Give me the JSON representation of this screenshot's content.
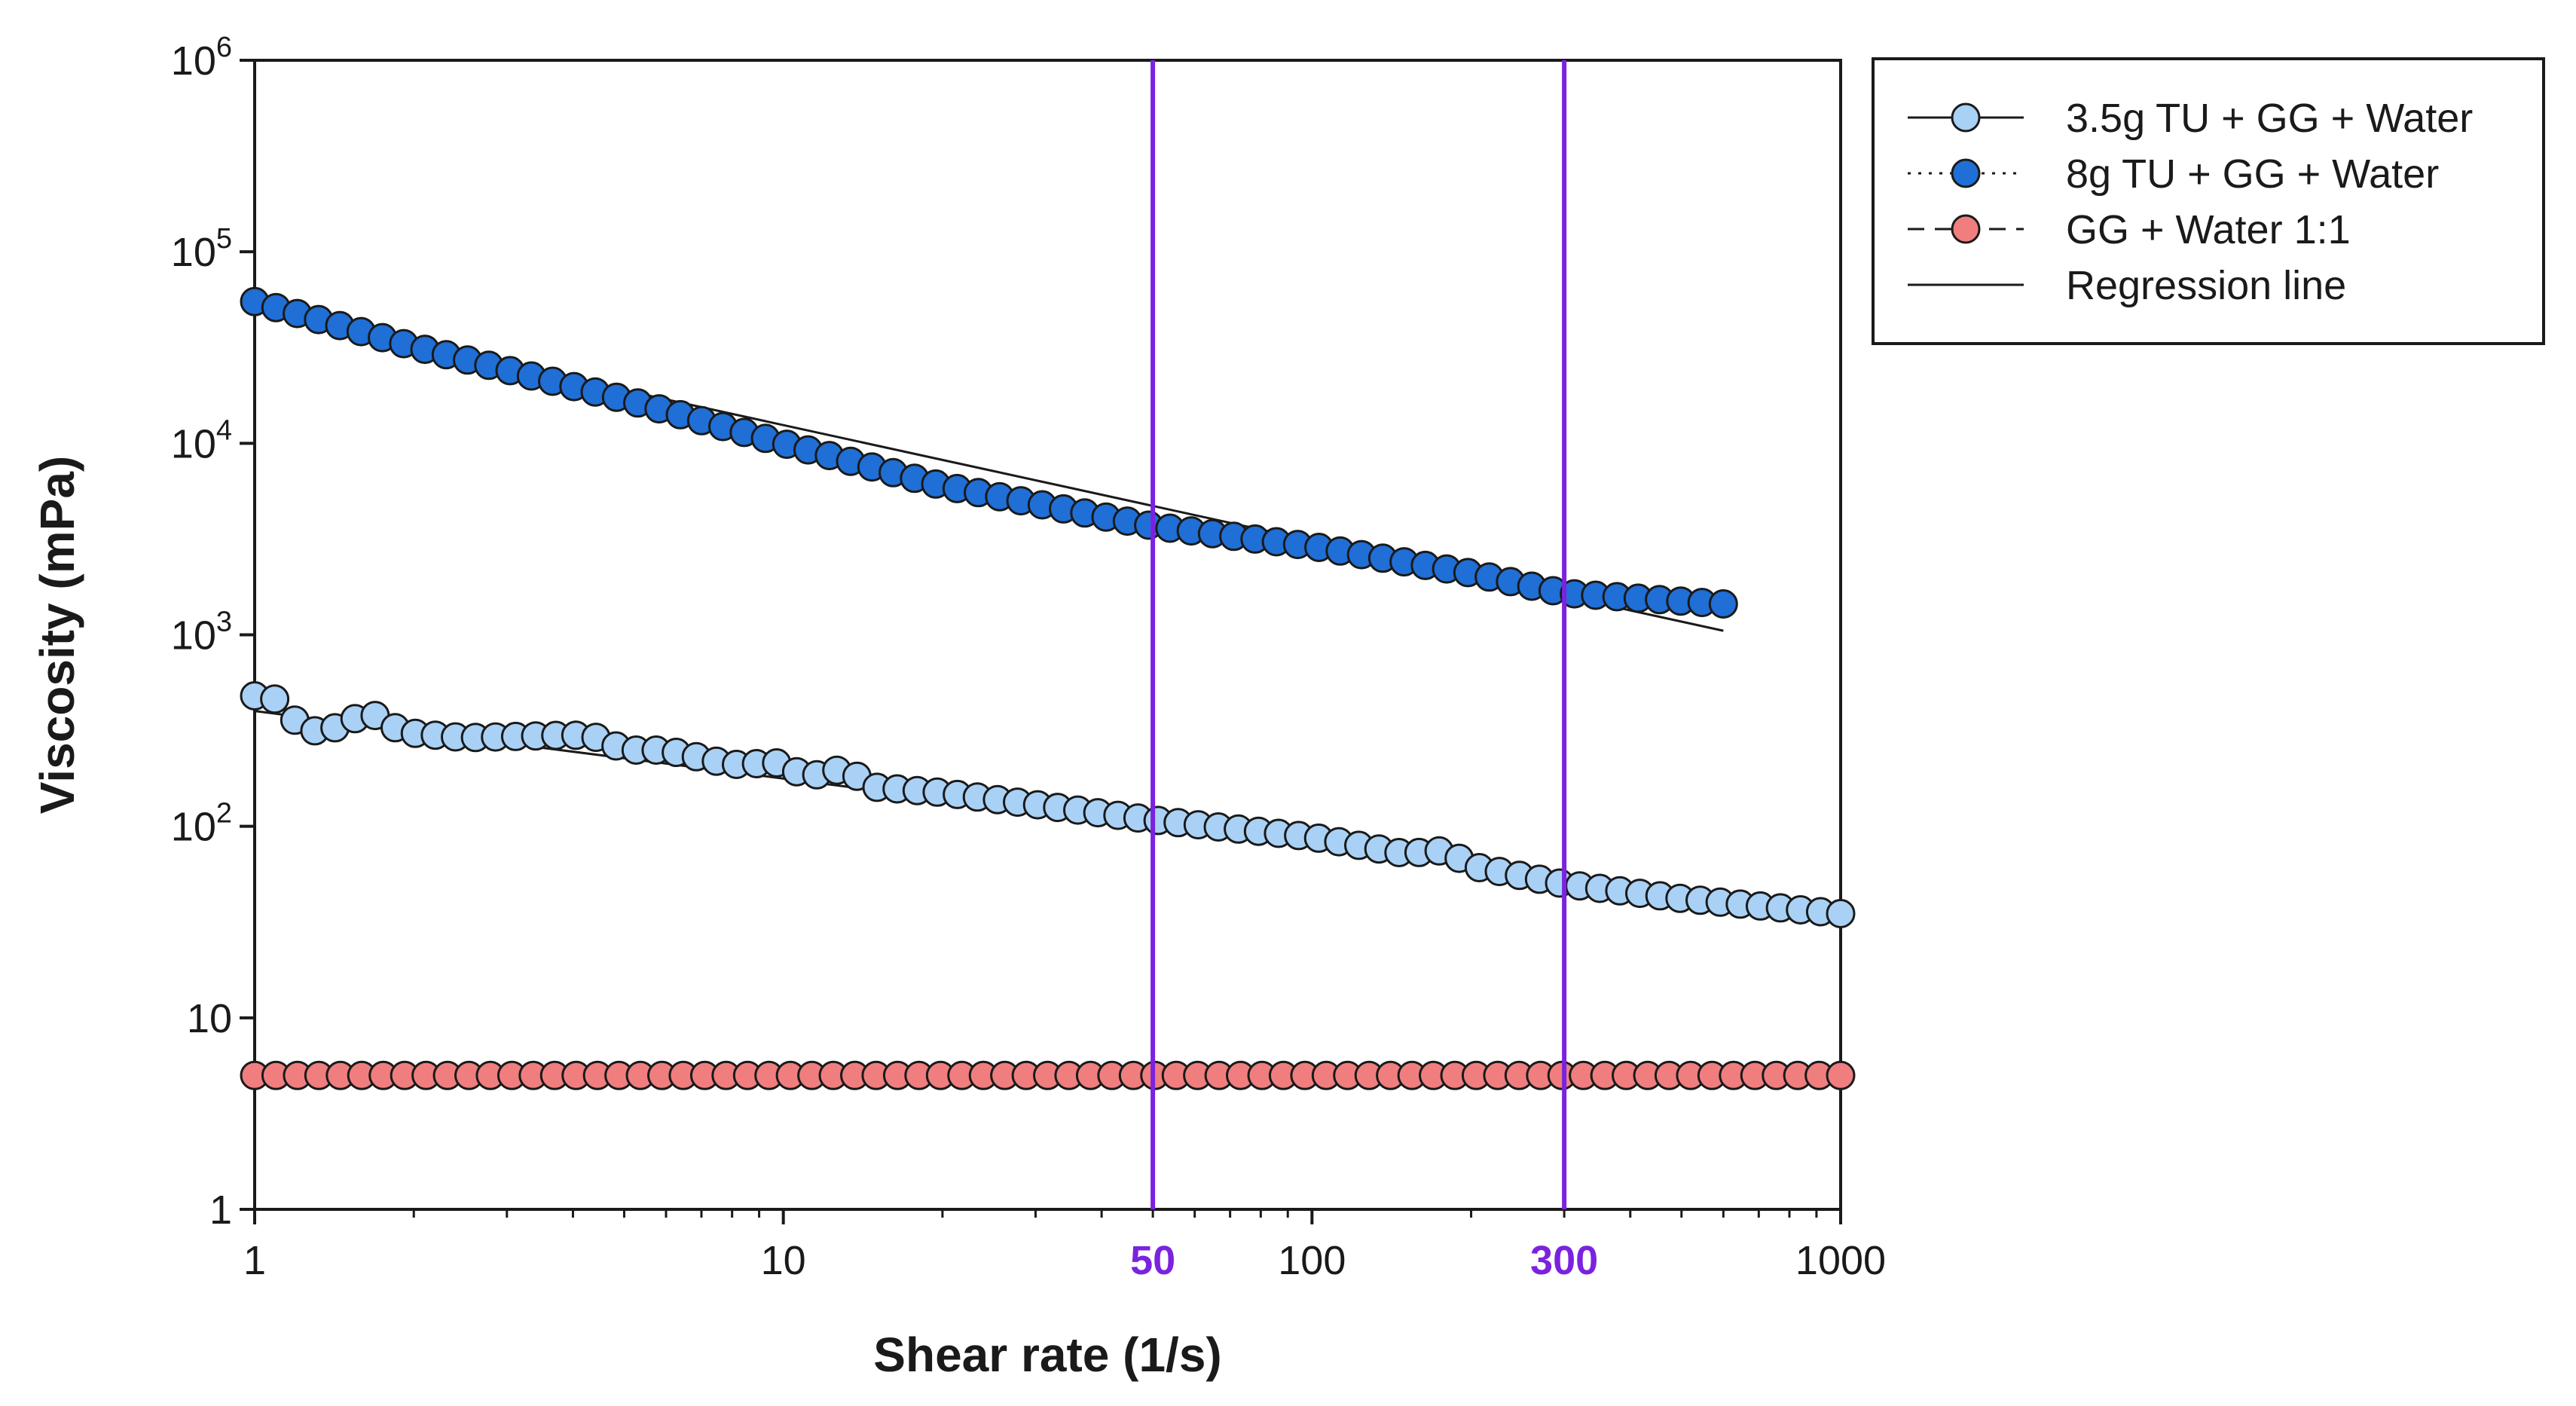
{
  "chart_data": {
    "type": "scatter",
    "title": "",
    "xlabel": "Shear rate (1/s)",
    "ylabel": "Viscosity (mPa)",
    "xscale": "log",
    "yscale": "log",
    "xlim": [
      1,
      1000
    ],
    "ylim": [
      1,
      1000000
    ],
    "x_ticks": [
      {
        "value": 1,
        "label": "1"
      },
      {
        "value": 10,
        "label": "10"
      },
      {
        "value": 100,
        "label": "100"
      },
      {
        "value": 1000,
        "label": "1000"
      }
    ],
    "y_ticks": [
      {
        "value": 1,
        "base": "1",
        "exp": ""
      },
      {
        "value": 10,
        "base": "10",
        "exp": ""
      },
      {
        "value": 100,
        "base": "10",
        "exp": "2"
      },
      {
        "value": 1000,
        "base": "10",
        "exp": "3"
      },
      {
        "value": 10000,
        "base": "10",
        "exp": "4"
      },
      {
        "value": 100000,
        "base": "10",
        "exp": "5"
      },
      {
        "value": 1000000,
        "base": "10",
        "exp": "6"
      }
    ],
    "vertical_markers": [
      {
        "value": 50,
        "label": "50",
        "color": "#7b22e0"
      },
      {
        "value": 300,
        "label": "300",
        "color": "#7b22e0"
      }
    ],
    "series": [
      {
        "name": "3.5g TU + GG + Water",
        "marker_fill": "#a9d1f5",
        "marker_edge": "#1a1a1a",
        "line_style": "solid",
        "x_start": 1,
        "x_end": 1000,
        "n_points": 80,
        "anchors": [
          [
            1,
            480
          ],
          [
            1.1,
            460
          ],
          [
            1.2,
            350
          ],
          [
            1.35,
            300
          ],
          [
            1.5,
            360
          ],
          [
            1.7,
            380
          ],
          [
            1.9,
            310
          ],
          [
            2.5,
            290
          ],
          [
            4,
            300
          ],
          [
            4.5,
            290
          ],
          [
            5,
            250
          ],
          [
            6,
            250
          ],
          [
            8,
            210
          ],
          [
            10,
            215
          ],
          [
            11,
            180
          ],
          [
            13,
            200
          ],
          [
            15,
            160
          ],
          [
            20,
            150
          ],
          [
            30,
            130
          ],
          [
            50,
            108
          ],
          [
            100,
            88
          ],
          [
            150,
            72
          ],
          [
            180,
            75
          ],
          [
            200,
            62
          ],
          [
            300,
            50
          ],
          [
            500,
            42
          ],
          [
            1000,
            35
          ]
        ],
        "regression": {
          "from": [
            1,
            400
          ],
          "to": [
            1000,
            35
          ]
        }
      },
      {
        "name": "8g TU + GG + Water",
        "marker_fill": "#1f6fd6",
        "marker_edge": "#1a1a1a",
        "line_style": "dotted",
        "x_start": 1,
        "x_end": 600,
        "n_points": 70,
        "anchors": [
          [
            1,
            55000
          ],
          [
            2,
            32000
          ],
          [
            5,
            17000
          ],
          [
            10,
            10000
          ],
          [
            20,
            6000
          ],
          [
            50,
            3700
          ],
          [
            100,
            2900
          ],
          [
            200,
            2100
          ],
          [
            300,
            1650
          ],
          [
            600,
            1450
          ]
        ],
        "regression": {
          "from": [
            1,
            50000
          ],
          "to": [
            600,
            1050
          ]
        }
      },
      {
        "name": "GG + Water 1:1",
        "marker_fill": "#f07e7e",
        "marker_edge": "#1a1a1a",
        "line_style": "dashed",
        "x_start": 1,
        "x_end": 1000,
        "n_points": 75,
        "anchors": [
          [
            1,
            5
          ],
          [
            1000,
            5
          ]
        ],
        "regression": null
      }
    ],
    "legend": {
      "placement": "top-right",
      "entries": [
        {
          "label": "3.5g TU + GG + Water",
          "marker_fill": "#a9d1f5",
          "line_style": "solid"
        },
        {
          "label": "8g TU + GG + Water",
          "marker_fill": "#1f6fd6",
          "line_style": "dotted"
        },
        {
          "label": "GG + Water 1:1",
          "marker_fill": "#f07e7e",
          "line_style": "dashed"
        },
        {
          "label": "Regression line",
          "marker_fill": null,
          "line_style": "solid"
        }
      ]
    }
  }
}
